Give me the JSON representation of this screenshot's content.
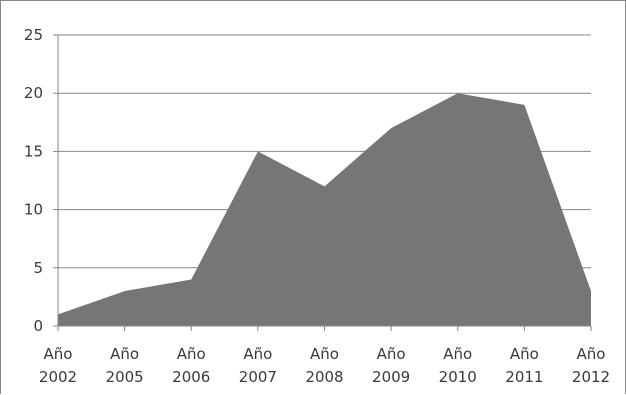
{
  "chart_data": {
    "type": "area",
    "categories": [
      [
        "Año",
        "2002"
      ],
      [
        "Año",
        "2005"
      ],
      [
        "Año",
        "2006"
      ],
      [
        "Año",
        "2007"
      ],
      [
        "Año",
        "2008"
      ],
      [
        "Año",
        "2009"
      ],
      [
        "Año",
        "2010"
      ],
      [
        "Año",
        "2011"
      ],
      [
        "Año",
        "2012"
      ]
    ],
    "series": [
      {
        "values": [
          1,
          3,
          4,
          15,
          12,
          17,
          20,
          19,
          3
        ],
        "color": "#767676"
      }
    ],
    "yticks": [
      "0",
      "5",
      "10",
      "15",
      "20",
      "25"
    ],
    "ylim": [
      0,
      25
    ],
    "grid": true,
    "legend": false,
    "colors": {
      "gridline": "#878787",
      "axis": "#878787",
      "tick_text": "#3a3a3a"
    }
  }
}
